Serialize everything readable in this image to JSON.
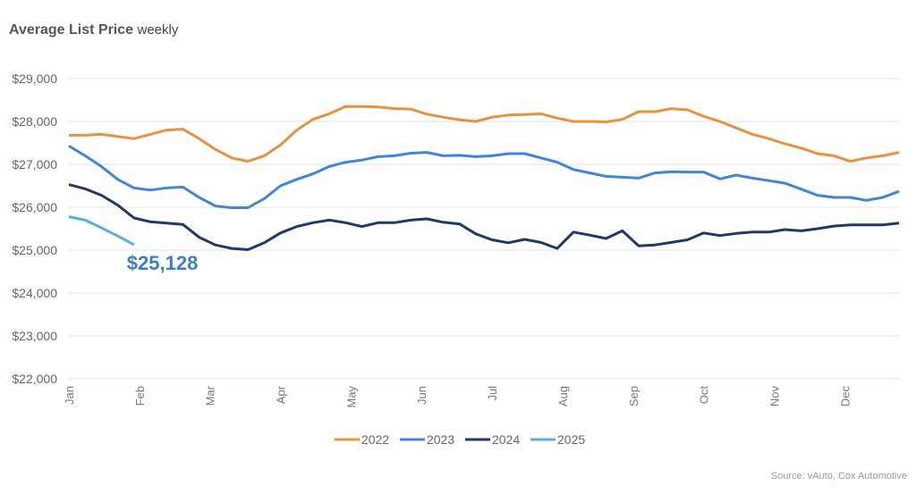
{
  "title": "Average List Price",
  "subtitle": "weekly",
  "source": "Source: vAuto, Cox Automotive",
  "chart_data": {
    "type": "line",
    "title": "Average List Price",
    "subtitle": "weekly",
    "xlabel": "",
    "ylabel": "",
    "ylim": [
      22000,
      29000
    ],
    "yticks": [
      22000,
      23000,
      24000,
      25000,
      26000,
      27000,
      28000,
      29000
    ],
    "ytick_labels": [
      "$22,000",
      "$23,000",
      "$24,000",
      "$25,000",
      "$26,000",
      "$27,000",
      "$28,000",
      "$29,000"
    ],
    "x_tick_labels": [
      "Jan",
      "Feb",
      "Mar",
      "Apr",
      "May",
      "Jun",
      "Jul",
      "Aug",
      "Sep",
      "Oct",
      "Nov",
      "Dec"
    ],
    "x_unit": "week",
    "grid": true,
    "legend": "bottom",
    "annotation": {
      "text": "$25,128",
      "series": "2025",
      "color": "#3a7dd0"
    },
    "series": [
      {
        "name": "2022",
        "color": "#e8923f",
        "values": [
          27680,
          27680,
          27700,
          27650,
          27600,
          27700,
          27800,
          27820,
          27600,
          27350,
          27150,
          27070,
          27200,
          27450,
          27800,
          28050,
          28180,
          28350,
          28350,
          28340,
          28300,
          28290,
          28170,
          28100,
          28040,
          28000,
          28100,
          28150,
          28160,
          28180,
          28080,
          28000,
          28000,
          27990,
          28050,
          28230,
          28230,
          28300,
          28270,
          28120,
          28000,
          27850,
          27700,
          27600,
          27480,
          27380,
          27250,
          27200,
          27070,
          27150,
          27200,
          27280
        ]
      },
      {
        "name": "2023",
        "color": "#3f86d8",
        "values": [
          27430,
          27200,
          26950,
          26650,
          26450,
          26400,
          26450,
          26470,
          26230,
          26030,
          25990,
          25990,
          26200,
          26500,
          26650,
          26780,
          26950,
          27050,
          27100,
          27180,
          27200,
          27260,
          27280,
          27200,
          27210,
          27180,
          27200,
          27250,
          27250,
          27150,
          27050,
          26880,
          26800,
          26720,
          26700,
          26680,
          26800,
          26830,
          26820,
          26820,
          26660,
          26750,
          26680,
          26620,
          26560,
          26420,
          26280,
          26230,
          26230,
          26160,
          26230,
          26370
        ]
      },
      {
        "name": "2024",
        "color": "#1f3a68",
        "values": [
          26530,
          26430,
          26280,
          26050,
          25750,
          25660,
          25630,
          25600,
          25300,
          25120,
          25040,
          25010,
          25170,
          25400,
          25550,
          25640,
          25700,
          25640,
          25550,
          25640,
          25640,
          25700,
          25730,
          25650,
          25610,
          25380,
          25240,
          25170,
          25250,
          25180,
          25040,
          25420,
          25350,
          25270,
          25450,
          25100,
          25120,
          25180,
          25240,
          25400,
          25340,
          25390,
          25420,
          25420,
          25480,
          25450,
          25500,
          25560,
          25590,
          25590,
          25590,
          25630
        ]
      },
      {
        "name": "2025",
        "color": "#5aaed8",
        "values": [
          25780,
          25700,
          25520,
          25330,
          25128
        ]
      }
    ]
  }
}
